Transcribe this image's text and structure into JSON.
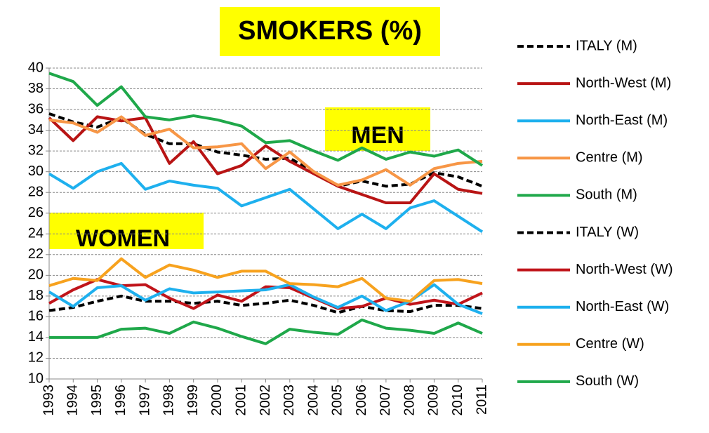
{
  "chart_data": {
    "type": "line",
    "title": "SMOKERS (%)",
    "annotations": [
      "MEN",
      "WOMEN"
    ],
    "categories": [
      "1993",
      "1994",
      "1995",
      "1996",
      "1997",
      "1998",
      "1999",
      "2000",
      "2001",
      "2002",
      "2003",
      "2004",
      "2005",
      "2006",
      "2007",
      "2008",
      "2009",
      "2010",
      "2011"
    ],
    "ylim": [
      10,
      40
    ],
    "yticks": [
      10,
      12,
      14,
      16,
      18,
      20,
      22,
      24,
      26,
      28,
      30,
      32,
      34,
      36,
      38,
      40
    ],
    "grid": true,
    "legend": "right",
    "series": [
      {
        "name": "ITALY (M)",
        "color": "#000000",
        "dashed": true,
        "values": [
          35.6,
          34.8,
          34.3,
          35.2,
          33.6,
          32.7,
          32.7,
          31.9,
          31.6,
          31.2,
          31.3,
          30.0,
          28.6,
          29.1,
          28.6,
          28.8,
          29.9,
          29.5,
          28.6
        ]
      },
      {
        "name": "North-West (M)",
        "color": "#b81414",
        "values": [
          35.2,
          33.0,
          35.3,
          34.9,
          35.2,
          30.8,
          32.9,
          29.8,
          30.6,
          32.5,
          31.0,
          29.8,
          28.6,
          27.8,
          27.0,
          27.0,
          29.8,
          28.3,
          27.9
        ]
      },
      {
        "name": "North-East (M)",
        "color": "#1eb0ee",
        "values": [
          29.8,
          28.4,
          30.0,
          30.8,
          28.3,
          29.1,
          28.7,
          28.4,
          26.7,
          27.5,
          28.3,
          26.4,
          24.5,
          25.9,
          24.5,
          26.5,
          27.2,
          25.7,
          24.2
        ]
      },
      {
        "name": "Centre (M)",
        "color": "#f79646",
        "values": [
          35.0,
          34.7,
          33.8,
          35.3,
          33.5,
          34.1,
          32.3,
          32.4,
          32.7,
          30.3,
          31.9,
          30.0,
          28.7,
          29.2,
          30.2,
          28.7,
          30.3,
          30.8,
          31.0
        ]
      },
      {
        "name": "South (M)",
        "color": "#1fa84a",
        "values": [
          39.5,
          38.7,
          36.4,
          38.2,
          35.3,
          35.0,
          35.4,
          35.0,
          34.4,
          32.8,
          33.0,
          32.0,
          31.1,
          32.3,
          31.2,
          31.9,
          31.5,
          32.1,
          30.6
        ]
      },
      {
        "name": "ITALY (W)",
        "color": "#000000",
        "dashed": true,
        "values": [
          16.6,
          16.9,
          17.5,
          18.0,
          17.5,
          17.5,
          17.3,
          17.5,
          17.1,
          17.3,
          17.6,
          17.1,
          16.4,
          17.0,
          16.6,
          16.5,
          17.1,
          17.1,
          16.8
        ]
      },
      {
        "name": "North-West (W)",
        "color": "#c0141a",
        "values": [
          17.3,
          18.6,
          19.6,
          19.0,
          19.1,
          17.8,
          16.8,
          18.1,
          17.5,
          18.9,
          18.8,
          17.8,
          16.8,
          17.0,
          17.8,
          17.2,
          17.6,
          17.2,
          18.3
        ]
      },
      {
        "name": "North-East (W)",
        "color": "#1eb0ee",
        "values": [
          18.4,
          17.0,
          18.8,
          19.0,
          17.6,
          18.7,
          18.3,
          18.4,
          18.5,
          18.6,
          19.1,
          17.9,
          16.9,
          18.0,
          16.6,
          17.5,
          19.1,
          17.2,
          16.3
        ]
      },
      {
        "name": "Centre (W)",
        "color": "#f7a21e",
        "values": [
          19.0,
          19.7,
          19.5,
          21.6,
          19.8,
          21.0,
          20.5,
          19.8,
          20.4,
          20.4,
          19.2,
          19.1,
          18.9,
          19.7,
          17.8,
          17.5,
          19.5,
          19.6,
          19.2
        ]
      },
      {
        "name": "South (W)",
        "color": "#1fa84a",
        "values": [
          14.0,
          14.0,
          14.0,
          14.8,
          14.9,
          14.4,
          15.5,
          14.9,
          14.1,
          13.4,
          14.8,
          14.5,
          14.3,
          15.7,
          14.9,
          14.7,
          14.4,
          15.4,
          14.4
        ]
      }
    ]
  }
}
